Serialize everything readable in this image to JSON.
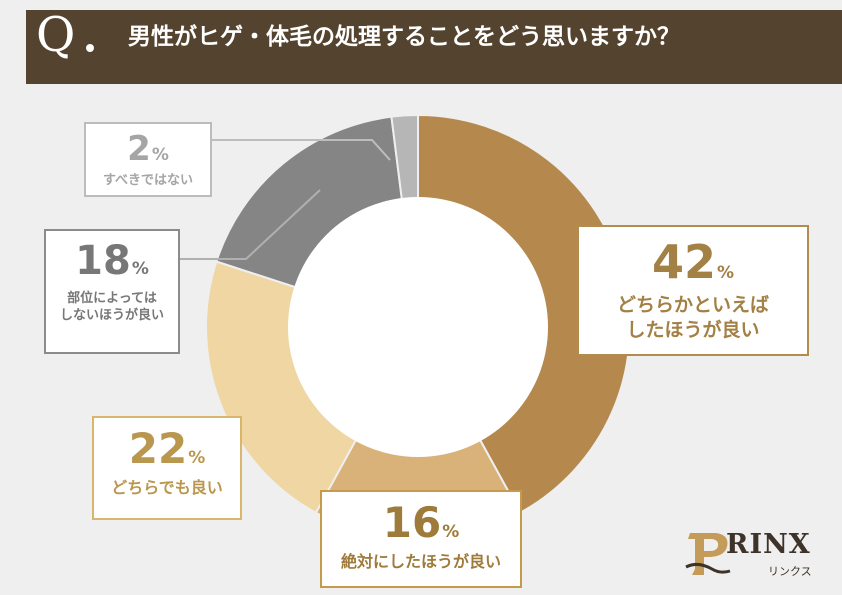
{
  "header": {
    "q_mark": "Q",
    "question": "男性がヒゲ・体毛の処理することをどう思いますか？"
  },
  "chart_data": {
    "type": "pie",
    "title": "男性がヒゲ・体毛の処理することをどう思いますか？",
    "unit": "%",
    "slices": [
      {
        "label": "どちらかといえば\nしたほうが良い",
        "value": 42,
        "color": "#b5894d"
      },
      {
        "label": "絶対にしたほうが良い",
        "value": 16,
        "color": "#d8b279"
      },
      {
        "label": "どちらでも良い",
        "value": 22,
        "color": "#efd6a2"
      },
      {
        "label": "部位によっては\nしないほうが良い",
        "value": 18,
        "color": "#858585"
      },
      {
        "label": "すべきではない",
        "value": 2,
        "color": "#b6b6b6"
      }
    ]
  },
  "labels": [
    {
      "value": "42",
      "unit": "%",
      "text": "どちらかといえば\nしたほうが良い"
    },
    {
      "value": "16",
      "unit": "%",
      "text": "絶対にしたほうが良い"
    },
    {
      "value": "22",
      "unit": "%",
      "text": "どちらでも良い"
    },
    {
      "value": "18",
      "unit": "%",
      "text": "部位によっては\nしないほうが良い"
    },
    {
      "value": "2",
      "unit": "%",
      "text": "すべきではない"
    }
  ],
  "logo": {
    "wordmark": "RINX",
    "subtitle": "リンクス",
    "icon": "rinx-emblem-icon"
  }
}
